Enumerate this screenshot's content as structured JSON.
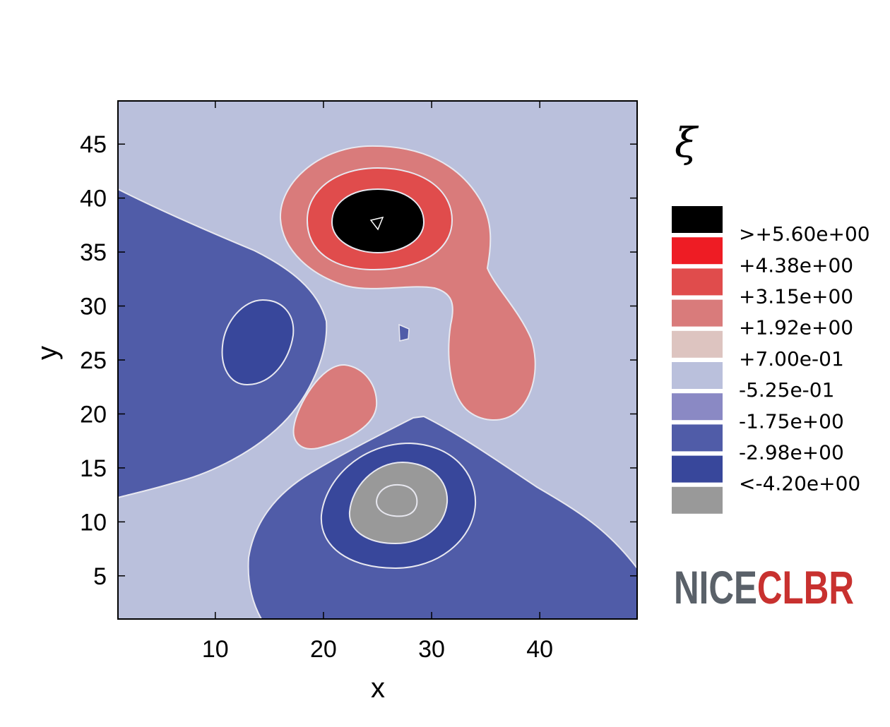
{
  "chart_data": {
    "type": "contour",
    "xlabel": "x",
    "ylabel": "y",
    "xlim": [
      1,
      49
    ],
    "ylim": [
      1,
      49
    ],
    "x_ticks": [
      10,
      20,
      30,
      40
    ],
    "y_ticks": [
      5,
      10,
      15,
      20,
      25,
      30,
      35,
      40,
      45
    ],
    "colorbar": {
      "title": "ξ",
      "levels": [
        {
          "label": ">+5.60e+00",
          "color": "#000000"
        },
        {
          "label": "+4.38e+00",
          "color": "#ee1c24"
        },
        {
          "label": "+3.15e+00",
          "color": "#e04c4c"
        },
        {
          "label": "+1.92e+00",
          "color": "#d97b7b"
        },
        {
          "label": "+7.00e-01",
          "color": "#ddc4c0"
        },
        {
          "label": "-5.25e-01",
          "color": "#bac0dc"
        },
        {
          "label": "-1.75e+00",
          "color": "#8a89c4"
        },
        {
          "label": "-2.98e+00",
          "color": "#505ca8"
        },
        {
          "label": "<-4.20e+00",
          "color": "#38479b"
        },
        {
          "label": "",
          "color": "#999999"
        }
      ]
    },
    "features": [
      {
        "kind": "max",
        "x": 25,
        "y": 37.5,
        "levels": [
          "+1.92e+00",
          "+3.15e+00",
          ">+5.60e+00"
        ]
      },
      {
        "kind": "min",
        "x": 26.5,
        "y": 12,
        "levels": [
          "-2.98e+00",
          "<-4.20e+00"
        ]
      },
      {
        "kind": "min",
        "x": 13.5,
        "y": 26,
        "levels": [
          "-2.98e+00"
        ]
      },
      {
        "kind": "max",
        "x": 34,
        "y": 25,
        "levels": [
          "+1.92e+00"
        ]
      },
      {
        "kind": "max",
        "x": 22,
        "y": 20,
        "levels": [
          "+1.92e+00"
        ]
      }
    ]
  },
  "logo": {
    "part1": "NICE",
    "part2": "CLBR",
    "color1": "#5a6169",
    "color2": "#c8312f"
  }
}
